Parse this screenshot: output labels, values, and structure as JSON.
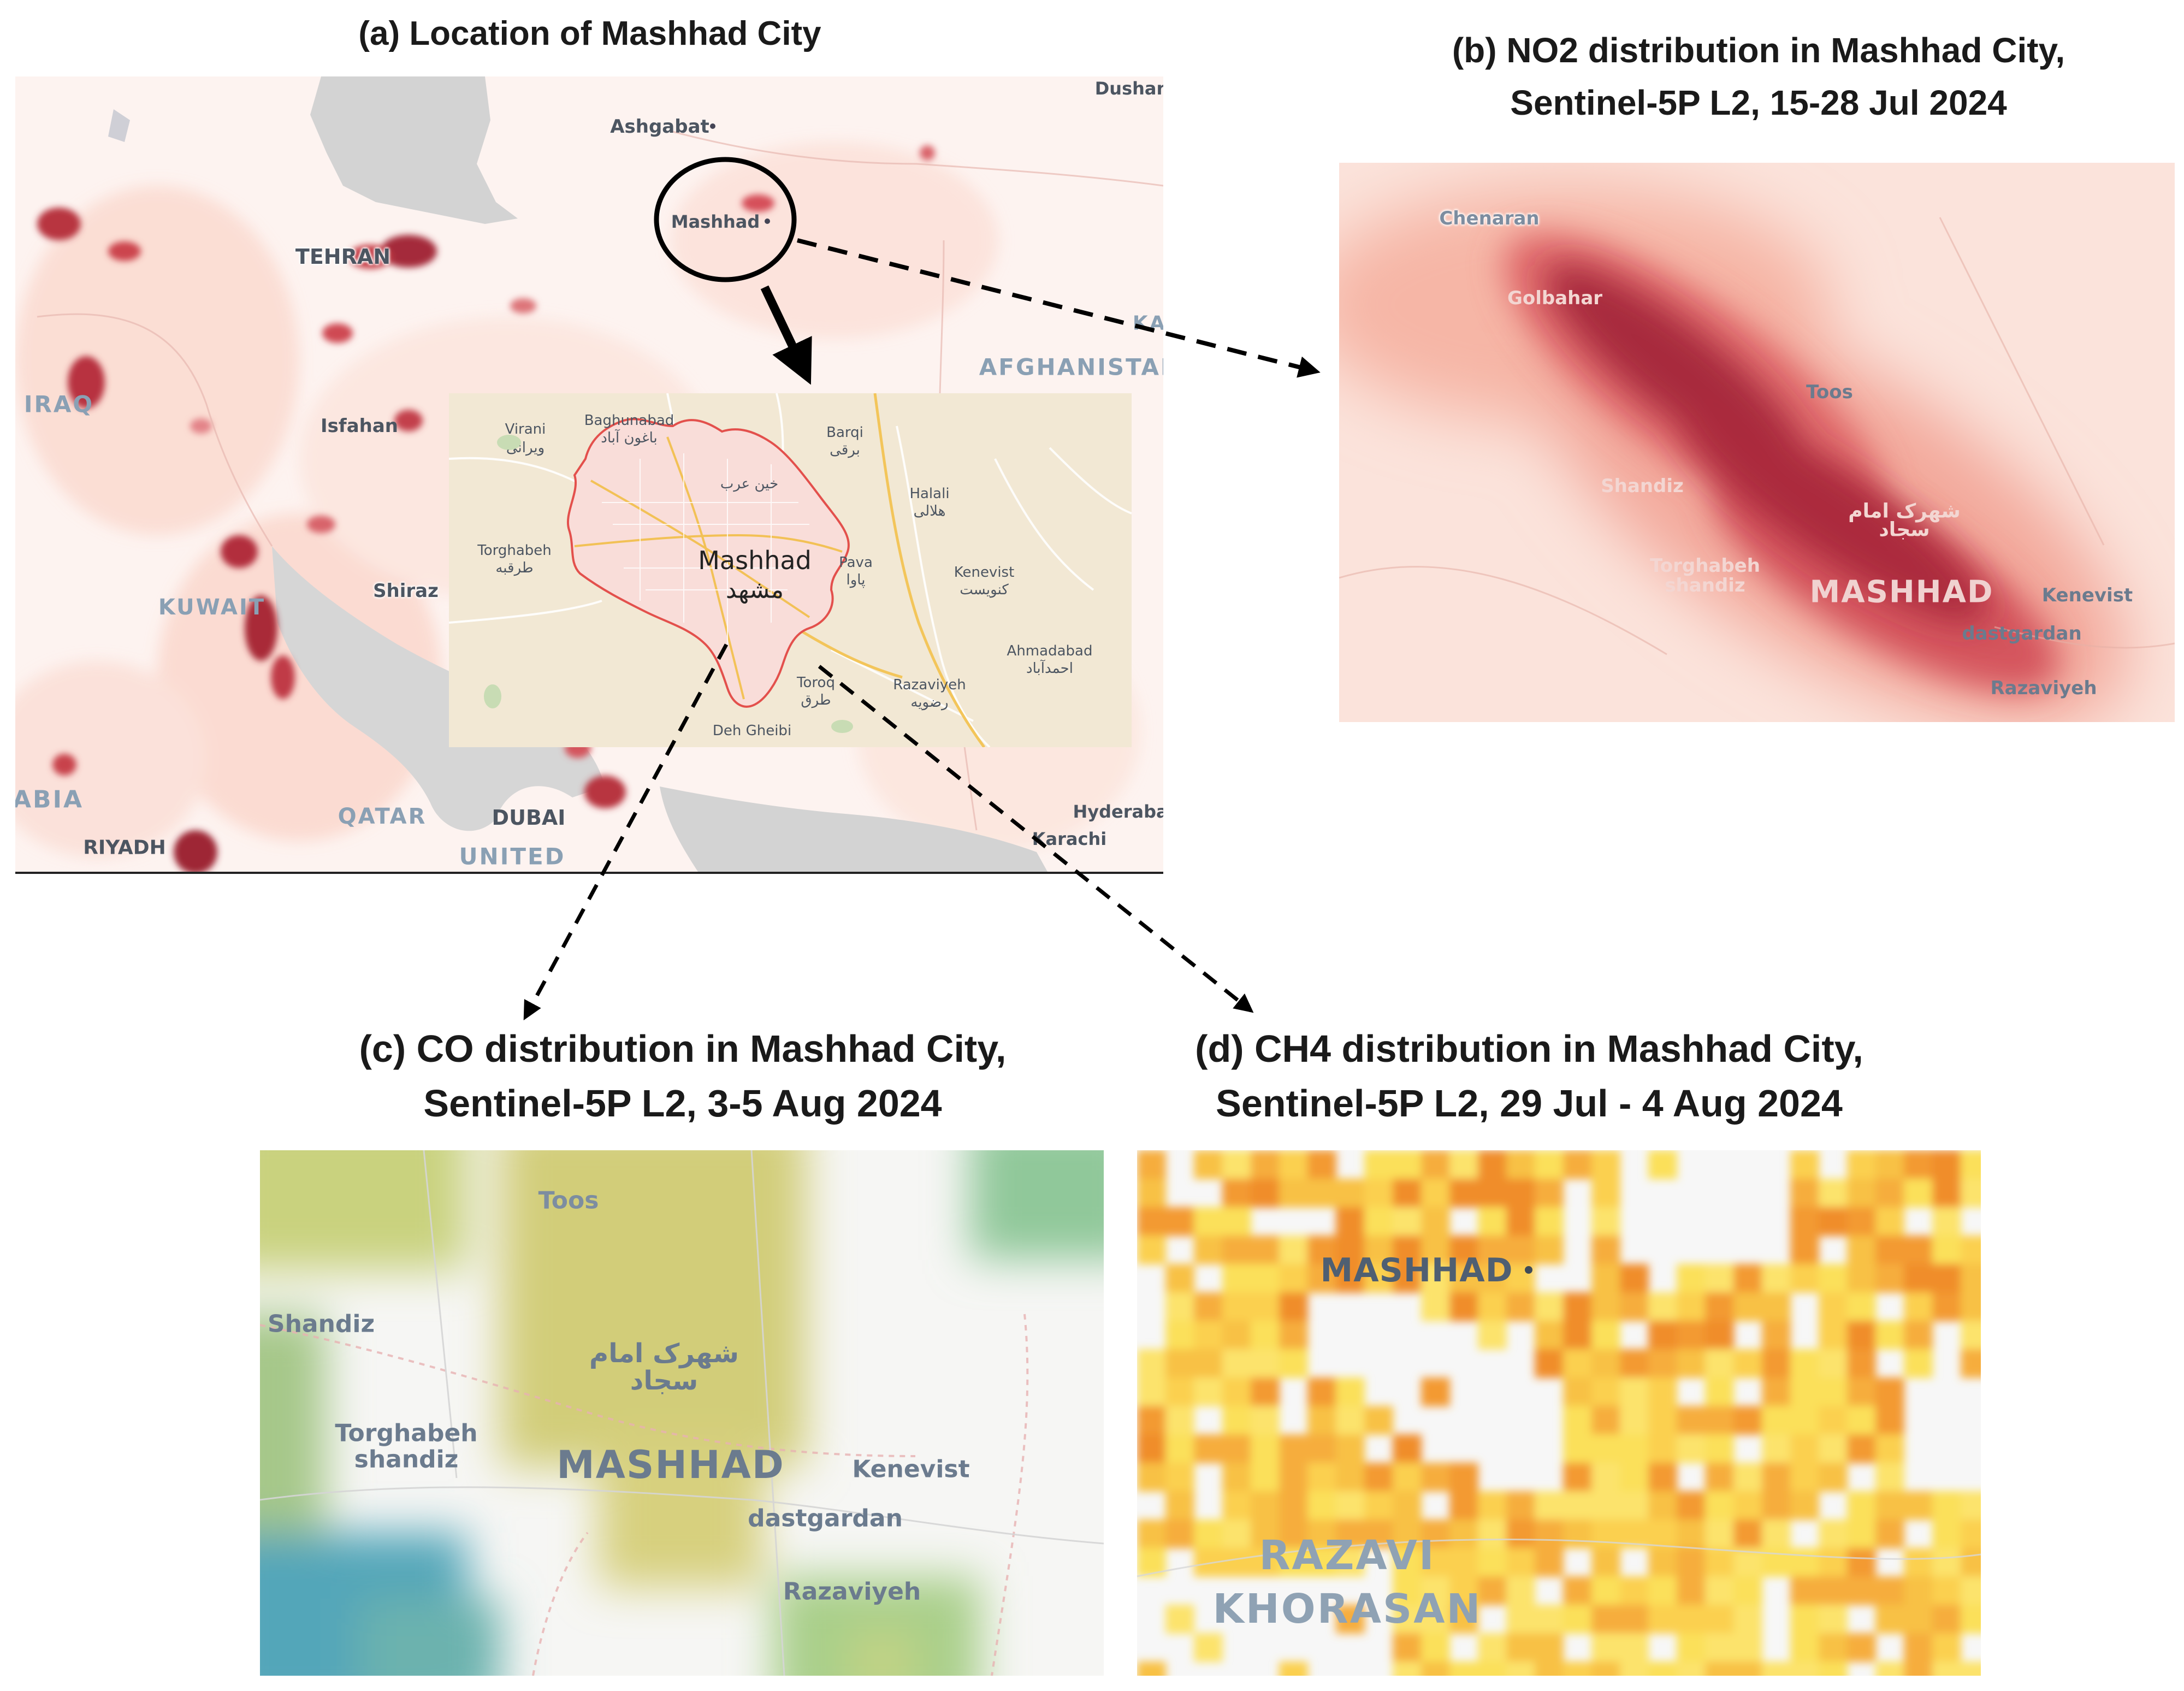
{
  "panels": {
    "a": {
      "title": "(a) Location of Mashhad City"
    },
    "b": {
      "title_line1": "(b) NO2 distribution in Mashhad City,",
      "title_line2": "Sentinel-5P L2, 15-28 Jul 2024"
    },
    "c": {
      "title_line1": "(c) CO distribution in Mashhad City,",
      "title_line2": "Sentinel-5P L2, 3-5 Aug 2024"
    },
    "d": {
      "title_line1": "(d) CH4 distribution in Mashhad City,",
      "title_line2": "Sentinel-5P L2, 29 Jul - 4 Aug 2024"
    }
  },
  "region_map": {
    "labels": {
      "dushanbe": "Dushanl",
      "ashgabat": "Ashgabat",
      "mashhad": "Mashhad",
      "tehran": "TEHRAN",
      "kabul": "KAI",
      "afghanistan": "AFGHANISTAN",
      "iraq": "IRAQ",
      "isfahan": "Isfahan",
      "shiraz": "Shiraz",
      "kuwait": "KUWAIT",
      "arabia": "ABIA",
      "qatar": "QATAR",
      "dubai": "DUBAI",
      "united": "UNITED",
      "riyadh": "RIYADH",
      "hyderabad": "Hyderabad",
      "karachi": "Karachi"
    }
  },
  "city_inset": {
    "labels": {
      "virani": "Virani",
      "virani_fa": "ویرانی",
      "baghunabad": "Baghunabad",
      "baghunabad_fa": "باغون آباد",
      "barqi": "Barqi",
      "barqi_fa": "برقی",
      "khin_arab_fa": "خین عرب",
      "halali": "Halali",
      "halali_fa": "هلالی",
      "torghabeh": "Torghabeh",
      "torghabeh_fa": "طرقبه",
      "mashhad": "Mashhad",
      "mashhad_fa": "مشهد",
      "pava": "Pava",
      "pava_fa": "پاوا",
      "kenevist": "Kenevist",
      "kenevist_fa": "کنویست",
      "ahmadabad": "Ahmadabad",
      "ahmadabad_fa": "احمدآباد",
      "toroq": "Toroq",
      "toroq_fa": "طرق",
      "razaviyeh": "Razaviyeh",
      "razaviyeh_fa": "رضویه",
      "deh_gheibi": "Deh Gheibi"
    }
  },
  "no2_map": {
    "labels": {
      "chenaran": "Chenaran",
      "golbahar": "Golbahar",
      "toos": "Toos",
      "shandiz": "Shandiz",
      "shahrak_fa": "شهرک امام",
      "sajjad_fa": "سجاد",
      "torghabeh_shandiz_1": "Torghabeh",
      "torghabeh_shandiz_2": "shandiz",
      "mashhad": "MASHHAD",
      "kenevist": "Kenevist",
      "dastgardan": "dastgardan",
      "razaviyeh": "Razaviyeh"
    }
  },
  "co_map": {
    "labels": {
      "toos": "Toos",
      "shandiz": "Shandiz",
      "shahrak_fa": "شهرک امام",
      "sajjad_fa": "سجاد",
      "torghabeh_shandiz_1": "Torghabeh",
      "torghabeh_shandiz_2": "shandiz",
      "mashhad": "MASHHAD",
      "kenevist": "Kenevist",
      "dastgardan": "dastgardan",
      "razaviyeh": "Razaviyeh"
    }
  },
  "ch4_map": {
    "labels": {
      "mashhad": "MASHHAD",
      "razavi": "RAZAVI",
      "khorasan": "KHORASAN"
    }
  },
  "colors": {
    "no2_peak": "#a72a3c",
    "no2_low": "#fbe3dc",
    "co_high": "#d2cd79",
    "co_low": "#52a6b9",
    "ch4_high": "#f08d2a",
    "ch4_low": "#fbe05a",
    "inset_boundary": "#e3504c",
    "annotation": "#000000"
  }
}
